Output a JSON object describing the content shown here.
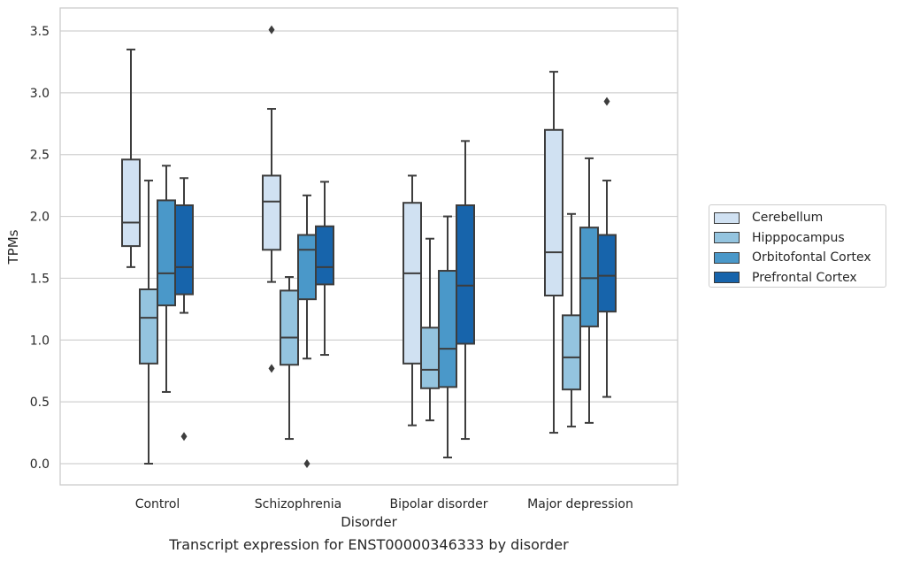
{
  "chart_data": {
    "type": "box",
    "title": "Transcript expression for ENST00000346333 by disorder",
    "xlabel": "Disorder",
    "ylabel": "TPMs",
    "ylim": [
      -0.17,
      3.68
    ],
    "yticks": [
      "0.0",
      "0.5",
      "1.0",
      "1.5",
      "2.0",
      "2.5",
      "3.0",
      "3.5"
    ],
    "ytick_values": [
      0.0,
      0.5,
      1.0,
      1.5,
      2.0,
      2.5,
      3.0,
      3.5
    ],
    "categories": [
      "Control",
      "Schizophrenia",
      "Bipolar disorder",
      "Major depression"
    ],
    "grid": "horizontal",
    "legend_position": "right",
    "series": [
      {
        "name": "Cerebellum",
        "color": "#d0e1f2",
        "boxes": [
          {
            "whisker_low": 1.59,
            "q1": 1.76,
            "median": 1.95,
            "q3": 2.46,
            "whisker_high": 3.35,
            "outliers": []
          },
          {
            "whisker_low": 1.47,
            "q1": 1.73,
            "median": 2.12,
            "q3": 2.33,
            "whisker_high": 2.87,
            "outliers": [
              3.51,
              0.77
            ]
          },
          {
            "whisker_low": 0.31,
            "q1": 0.81,
            "median": 1.54,
            "q3": 2.11,
            "whisker_high": 2.33,
            "outliers": []
          },
          {
            "whisker_low": 0.25,
            "q1": 1.36,
            "median": 1.71,
            "q3": 2.7,
            "whisker_high": 3.17,
            "outliers": []
          }
        ]
      },
      {
        "name": "Hipppocampus",
        "color": "#94c4df",
        "boxes": [
          {
            "whisker_low": 0.0,
            "q1": 0.81,
            "median": 1.18,
            "q3": 1.41,
            "whisker_high": 2.29,
            "outliers": []
          },
          {
            "whisker_low": 0.2,
            "q1": 0.8,
            "median": 1.02,
            "q3": 1.4,
            "whisker_high": 1.51,
            "outliers": []
          },
          {
            "whisker_low": 0.35,
            "q1": 0.61,
            "median": 0.76,
            "q3": 1.1,
            "whisker_high": 1.82,
            "outliers": []
          },
          {
            "whisker_low": 0.3,
            "q1": 0.6,
            "median": 0.86,
            "q3": 1.2,
            "whisker_high": 2.02,
            "outliers": []
          }
        ]
      },
      {
        "name": "Orbitofontal Cortex",
        "color": "#4a98c9",
        "boxes": [
          {
            "whisker_low": 0.58,
            "q1": 1.28,
            "median": 1.54,
            "q3": 2.13,
            "whisker_high": 2.41,
            "outliers": []
          },
          {
            "whisker_low": 0.85,
            "q1": 1.33,
            "median": 1.73,
            "q3": 1.85,
            "whisker_high": 2.17,
            "outliers": [
              0.0
            ]
          },
          {
            "whisker_low": 0.05,
            "q1": 0.62,
            "median": 0.93,
            "q3": 1.56,
            "whisker_high": 2.0,
            "outliers": []
          },
          {
            "whisker_low": 0.33,
            "q1": 1.11,
            "median": 1.5,
            "q3": 1.91,
            "whisker_high": 2.47,
            "outliers": []
          }
        ]
      },
      {
        "name": "Prefrontal Cortex",
        "color": "#1764ab",
        "boxes": [
          {
            "whisker_low": 1.22,
            "q1": 1.37,
            "median": 1.59,
            "q3": 2.09,
            "whisker_high": 2.31,
            "outliers": [
              0.22
            ]
          },
          {
            "whisker_low": 0.88,
            "q1": 1.45,
            "median": 1.59,
            "q3": 1.92,
            "whisker_high": 2.28,
            "outliers": []
          },
          {
            "whisker_low": 0.2,
            "q1": 0.97,
            "median": 1.44,
            "q3": 2.09,
            "whisker_high": 2.61,
            "outliers": []
          },
          {
            "whisker_low": 0.54,
            "q1": 1.23,
            "median": 1.52,
            "q3": 1.85,
            "whisker_high": 2.29,
            "outliers": [
              2.93
            ]
          }
        ]
      }
    ]
  }
}
